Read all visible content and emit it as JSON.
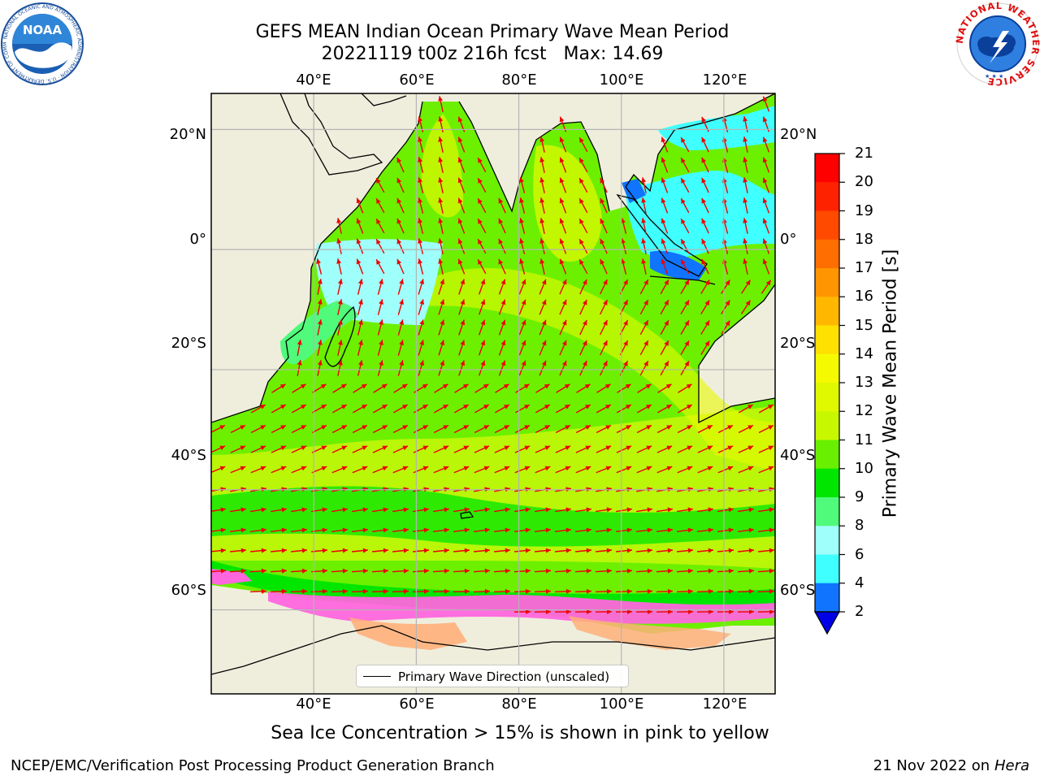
{
  "header": {
    "title_line1": "GEFS MEAN Indian Ocean Primary Wave Mean Period",
    "title_line2": "20221119 t00z 216h fcst   Max: 14.69"
  },
  "logos": {
    "left": {
      "name": "NOAA",
      "text": "NOAA",
      "ring_text": "NATIONAL OCEANIC AND ATMOSPHERIC ADMINISTRATION · U.S. DEPARTMENT OF COMMERCE"
    },
    "right": {
      "name": "National Weather Service",
      "ring_text": "NATIONAL WEATHER SERVICE"
    }
  },
  "map": {
    "lon_range": [
      20,
      130
    ],
    "lat_range": [
      -74,
      26
    ],
    "lon_ticks": [
      "40°E",
      "60°E",
      "80°E",
      "100°E",
      "120°E"
    ],
    "lat_ticks": [
      "20°N",
      "0°",
      "20°S",
      "40°S",
      "60°S"
    ],
    "gridlines": true,
    "colors": {
      "land": "#efeedd",
      "ocean_background": "#ffffff",
      "arrows": "#ee0000",
      "coastline": "#000000"
    }
  },
  "colorbar": {
    "title": "Primary Wave Mean Period [s]",
    "tick_labels": [
      "21",
      "20",
      "19",
      "18",
      "17",
      "16",
      "15",
      "14",
      "13",
      "12",
      "11",
      "10",
      "9",
      "8",
      "6",
      "4",
      "2"
    ],
    "colors": [
      "#ff0000",
      "#ff2200",
      "#ff4a00",
      "#ff6e00",
      "#ff9500",
      "#ffb700",
      "#ffe000",
      "#f5fa00",
      "#e0f800",
      "#c8f800",
      "#68f000",
      "#00e600",
      "#50fa7a",
      "#9ffffa",
      "#40ffff",
      "#00ddff",
      "#1074ff"
    ],
    "extend_below_color": "#0000e6"
  },
  "legend": {
    "label": "Primary Wave Direction (unscaled)"
  },
  "footer": {
    "note": "Sea Ice Concentration > 15% is shown in pink to yellow",
    "left_credit": "NCEP/EMC/Verification Post Processing Product Generation Branch",
    "right_date": "21 Nov 2022 on",
    "right_host": "Hera"
  }
}
